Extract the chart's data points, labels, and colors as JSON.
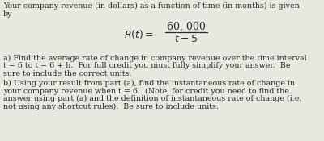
{
  "bg_color": "#e8e8e0",
  "text_color": "#2a2a2a",
  "line1": "Your company revenue (in dollars) as a function of time (in months) is given",
  "line2": "by",
  "para_a_line1": "a) Find the average rate of change in company revenue over the time interval",
  "para_a_line2": "t = 6 to t = 6 + h.  For full credit you must fully simplify your answer.  Be",
  "para_a_line3": "sure to include the correct units.",
  "para_b_line1": "b) Using your result from part (a), find the instantaneous rate of change in",
  "para_b_line2": "your company revenue when t = 6.  (Note, for credit you need to find the",
  "para_b_line3": "answer using part (a) and the definition of instantaneous rate of change (i.e.",
  "para_b_line4": "not using any shortcut rules).  Be sure to include units.",
  "font_size_body": 6.8,
  "font_size_formula": 9.0
}
